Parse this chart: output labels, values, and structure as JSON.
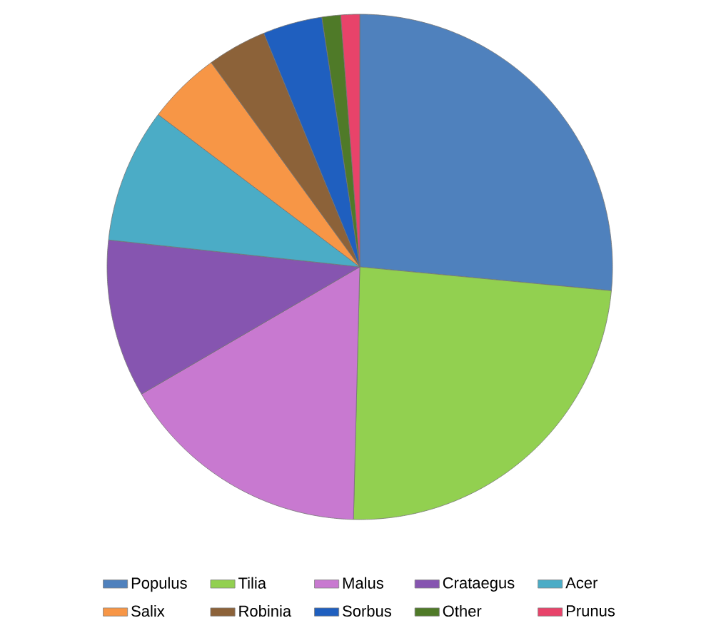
{
  "chart_data": {
    "type": "pie",
    "categories": [
      "Populus",
      "Tilia",
      "Malus",
      "Crataegus",
      "Acer",
      "Salix",
      "Robinia",
      "Sorbus",
      "Other",
      "Prunus"
    ],
    "values": [
      26.5,
      23.9,
      16.2,
      10.1,
      8.6,
      4.7,
      3.8,
      3.8,
      1.2,
      1.2
    ],
    "colors": [
      "#4f81bd",
      "#92d050",
      "#c879d0",
      "#8655b0",
      "#4bacc6",
      "#f79646",
      "#8c6239",
      "#1f5fbf",
      "#4f7a28",
      "#e8436a"
    ],
    "legend": "bottom"
  }
}
